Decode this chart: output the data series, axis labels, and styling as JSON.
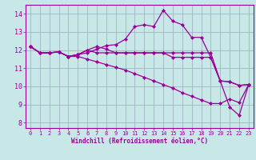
{
  "xlabel": "Windchill (Refroidissement éolien,°C)",
  "bg_color": "#c8e8e8",
  "line_color": "#990099",
  "grid_color": "#99aabb",
  "x_ticks": [
    0,
    1,
    2,
    3,
    4,
    5,
    6,
    7,
    8,
    9,
    10,
    11,
    12,
    13,
    14,
    15,
    16,
    17,
    18,
    19,
    20,
    21,
    22,
    23
  ],
  "y_ticks": [
    8,
    9,
    10,
    11,
    12,
    13,
    14
  ],
  "ylim": [
    7.7,
    14.5
  ],
  "xlim": [
    -0.5,
    23.5
  ],
  "lines": [
    [
      12.2,
      11.85,
      11.85,
      11.9,
      11.65,
      11.75,
      12.0,
      11.85,
      11.85,
      11.85,
      11.85,
      11.85,
      11.85,
      11.85,
      11.85,
      11.6,
      11.6,
      11.6,
      11.6,
      11.6,
      10.3,
      10.25,
      10.05,
      10.1
    ],
    [
      12.2,
      11.85,
      11.85,
      11.9,
      11.65,
      11.65,
      11.5,
      11.35,
      11.2,
      11.05,
      10.9,
      10.7,
      10.5,
      10.3,
      10.1,
      9.9,
      9.65,
      9.45,
      9.25,
      9.05,
      9.05,
      9.3,
      9.1,
      10.1
    ],
    [
      12.2,
      11.85,
      11.85,
      11.9,
      11.65,
      11.75,
      11.85,
      12.05,
      12.25,
      12.3,
      12.6,
      13.3,
      13.4,
      13.3,
      14.2,
      13.6,
      13.4,
      12.7,
      12.7,
      11.6,
      10.3,
      8.85,
      8.4,
      10.1
    ],
    [
      12.2,
      11.85,
      11.85,
      11.9,
      11.65,
      11.75,
      12.0,
      12.2,
      12.05,
      11.85,
      11.85,
      11.85,
      11.85,
      11.85,
      11.85,
      11.85,
      11.85,
      11.85,
      11.85,
      11.85,
      10.3,
      10.25,
      10.05,
      10.1
    ]
  ]
}
